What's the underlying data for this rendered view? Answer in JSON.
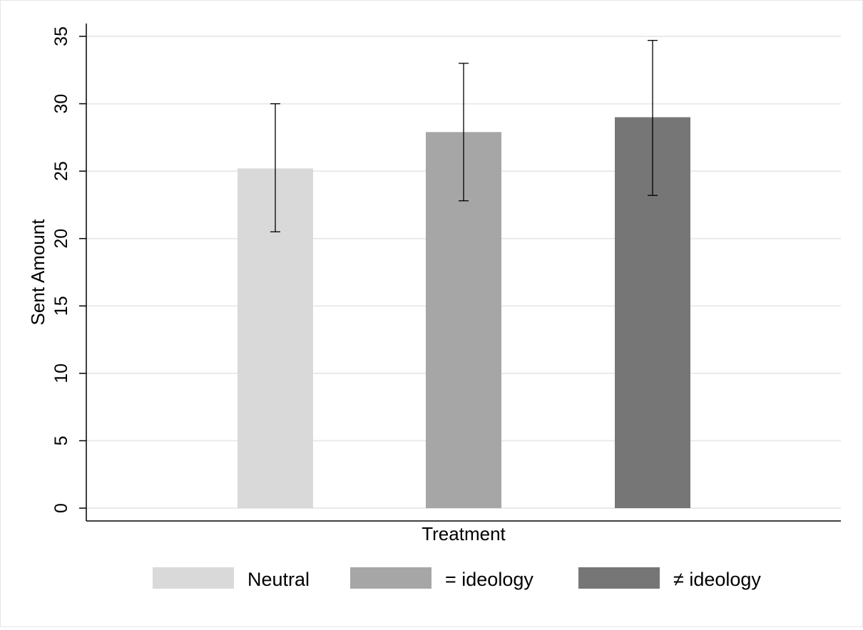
{
  "chart_data": {
    "type": "bar",
    "xlabel": "Treatment",
    "ylabel": "Sent Amount",
    "ylim": [
      0,
      35
    ],
    "yticks": [
      0,
      5,
      10,
      15,
      20,
      25,
      30,
      35
    ],
    "grid": true,
    "legend_position": "bottom",
    "series": [
      {
        "name": "Neutral",
        "value": 25.2,
        "ci_low": 20.5,
        "ci_high": 30.0,
        "color": "#d9d9d9"
      },
      {
        "name": "= ideology",
        "value": 27.9,
        "ci_low": 22.8,
        "ci_high": 33.0,
        "color": "#a6a6a6"
      },
      {
        "name": "≠ ideology",
        "value": 29.0,
        "ci_low": 23.2,
        "ci_high": 34.7,
        "color": "#767676"
      }
    ]
  }
}
